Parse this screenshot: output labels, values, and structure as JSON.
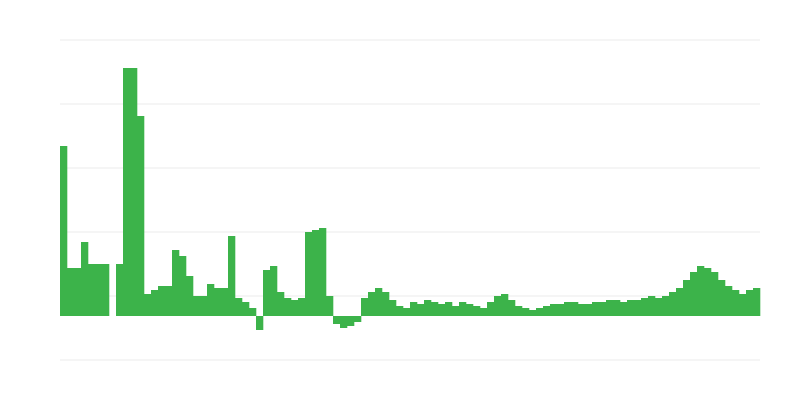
{
  "chart_data": {
    "type": "bar",
    "color": "#3cb34a",
    "grid": true,
    "ylim": [
      -44,
      276
    ],
    "yticks": [
      -44,
      20,
      84,
      148,
      212,
      276
    ],
    "values": [
      170,
      48,
      48,
      74,
      52,
      52,
      52,
      0,
      52,
      248,
      248,
      200,
      22,
      26,
      30,
      30,
      66,
      60,
      40,
      20,
      20,
      32,
      28,
      28,
      80,
      18,
      14,
      8,
      -14,
      46,
      50,
      24,
      18,
      16,
      18,
      84,
      86,
      88,
      20,
      -8,
      -12,
      -10,
      -6,
      18,
      24,
      28,
      24,
      16,
      10,
      8,
      14,
      12,
      16,
      14,
      12,
      14,
      10,
      14,
      12,
      10,
      8,
      14,
      20,
      22,
      16,
      10,
      8,
      6,
      8,
      10,
      12,
      12,
      14,
      14,
      12,
      12,
      14,
      14,
      16,
      16,
      14,
      16,
      16,
      18,
      20,
      18,
      20,
      24,
      28,
      36,
      44,
      50,
      48,
      44,
      36,
      30,
      26,
      22,
      26,
      28
    ]
  }
}
